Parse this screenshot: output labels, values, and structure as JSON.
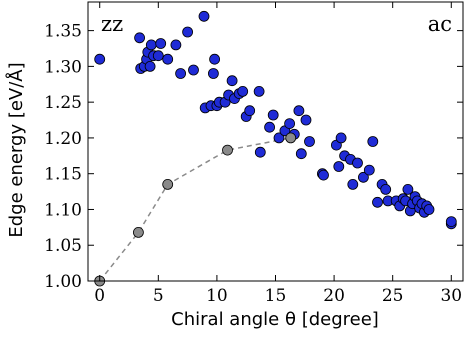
{
  "chart_data": {
    "type": "scatter",
    "xlabel": "Chiral angle θ [degree]",
    "ylabel": "Edge energy [eV/Å]",
    "xlim": [
      -1,
      31
    ],
    "ylim": [
      1.0,
      1.39
    ],
    "xticks": [
      0,
      5,
      10,
      15,
      20,
      25,
      30
    ],
    "yticks": [
      1.0,
      1.05,
      1.1,
      1.15,
      1.2,
      1.25,
      1.3,
      1.35
    ],
    "xtick_labels": [
      "0",
      "5",
      "10",
      "15",
      "20",
      "25",
      "30"
    ],
    "ytick_labels": [
      "1.00",
      "1.05",
      "1.10",
      "1.15",
      "1.20",
      "1.25",
      "1.30",
      "1.35"
    ],
    "grid": false,
    "annotations": [
      {
        "text": "zz",
        "position": "top-left"
      },
      {
        "text": "ac",
        "position": "top-right"
      }
    ],
    "series": [
      {
        "color": "#1f2bd6",
        "marker": "circle",
        "points": [
          [
            0.0,
            1.31
          ],
          [
            3.4,
            1.34
          ],
          [
            3.5,
            1.297
          ],
          [
            3.8,
            1.3
          ],
          [
            4.0,
            1.31
          ],
          [
            4.1,
            1.32
          ],
          [
            4.3,
            1.3
          ],
          [
            4.4,
            1.33
          ],
          [
            4.6,
            1.315
          ],
          [
            5.0,
            1.315
          ],
          [
            5.2,
            1.332
          ],
          [
            5.8,
            1.31
          ],
          [
            6.5,
            1.33
          ],
          [
            6.9,
            1.29
          ],
          [
            7.5,
            1.348
          ],
          [
            8.0,
            1.295
          ],
          [
            8.9,
            1.37
          ],
          [
            9.0,
            1.242
          ],
          [
            9.5,
            1.245
          ],
          [
            9.7,
            1.29
          ],
          [
            9.8,
            1.31
          ],
          [
            10.0,
            1.245
          ],
          [
            10.2,
            1.25
          ],
          [
            10.7,
            1.25
          ],
          [
            11.0,
            1.26
          ],
          [
            11.3,
            1.28
          ],
          [
            11.5,
            1.255
          ],
          [
            11.9,
            1.262
          ],
          [
            12.2,
            1.265
          ],
          [
            12.5,
            1.23
          ],
          [
            12.8,
            1.238
          ],
          [
            13.6,
            1.265
          ],
          [
            13.7,
            1.18
          ],
          [
            14.5,
            1.215
          ],
          [
            14.8,
            1.232
          ],
          [
            15.3,
            1.2
          ],
          [
            15.8,
            1.21
          ],
          [
            16.2,
            1.22
          ],
          [
            16.6,
            1.205
          ],
          [
            17.0,
            1.238
          ],
          [
            17.2,
            1.178
          ],
          [
            17.6,
            1.225
          ],
          [
            17.9,
            1.195
          ],
          [
            19.0,
            1.15
          ],
          [
            19.1,
            1.148
          ],
          [
            20.2,
            1.19
          ],
          [
            20.4,
            1.16
          ],
          [
            20.6,
            1.2
          ],
          [
            20.9,
            1.175
          ],
          [
            21.4,
            1.17
          ],
          [
            21.6,
            1.135
          ],
          [
            22.0,
            1.165
          ],
          [
            22.5,
            1.145
          ],
          [
            23.0,
            1.155
          ],
          [
            23.3,
            1.195
          ],
          [
            23.7,
            1.11
          ],
          [
            24.1,
            1.135
          ],
          [
            24.4,
            1.128
          ],
          [
            24.6,
            1.112
          ],
          [
            25.3,
            1.112
          ],
          [
            25.6,
            1.105
          ],
          [
            25.9,
            1.115
          ],
          [
            26.1,
            1.112
          ],
          [
            26.3,
            1.128
          ],
          [
            26.5,
            1.098
          ],
          [
            26.7,
            1.108
          ],
          [
            26.9,
            1.118
          ],
          [
            27.1,
            1.112
          ],
          [
            27.3,
            1.102
          ],
          [
            27.5,
            1.108
          ],
          [
            27.7,
            1.096
          ],
          [
            27.9,
            1.105
          ],
          [
            28.1,
            1.1
          ],
          [
            30.0,
            1.08
          ],
          [
            30.0,
            1.083
          ]
        ]
      },
      {
        "color": "#8a8a8a",
        "marker": "circle",
        "line_style": "dashed",
        "points": [
          [
            0.0,
            1.0
          ],
          [
            3.3,
            1.068
          ],
          [
            5.8,
            1.135
          ],
          [
            10.9,
            1.183
          ],
          [
            16.3,
            1.2
          ]
        ]
      }
    ]
  }
}
